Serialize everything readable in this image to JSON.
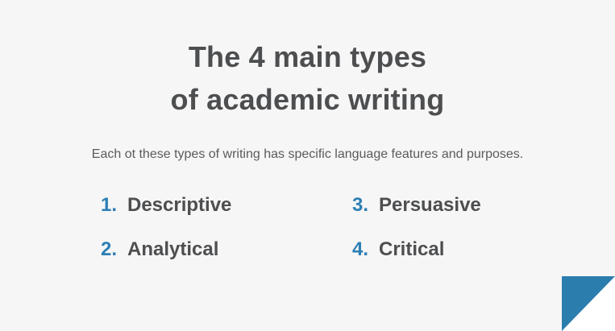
{
  "slide": {
    "title_line1": "The 4 main types",
    "title_line2": "of academic writing",
    "subtitle": "Each ot these types of writing has specific language features and purposes.",
    "items": [
      {
        "number": "1.",
        "label": "Descriptive"
      },
      {
        "number": "2.",
        "label": "Analytical"
      },
      {
        "number": "3.",
        "label": "Persuasive"
      },
      {
        "number": "4.",
        "label": "Critical"
      }
    ],
    "corner_icon": "blue-corner-triangle",
    "colors": {
      "background": "#f6f6f6",
      "title_gray": "#4d4e50",
      "subtitle_gray": "#5a5b5d",
      "number_blue": "#2d7fb4",
      "accent_blue": "#2b7dae",
      "corner_white": "#ffffff"
    }
  }
}
